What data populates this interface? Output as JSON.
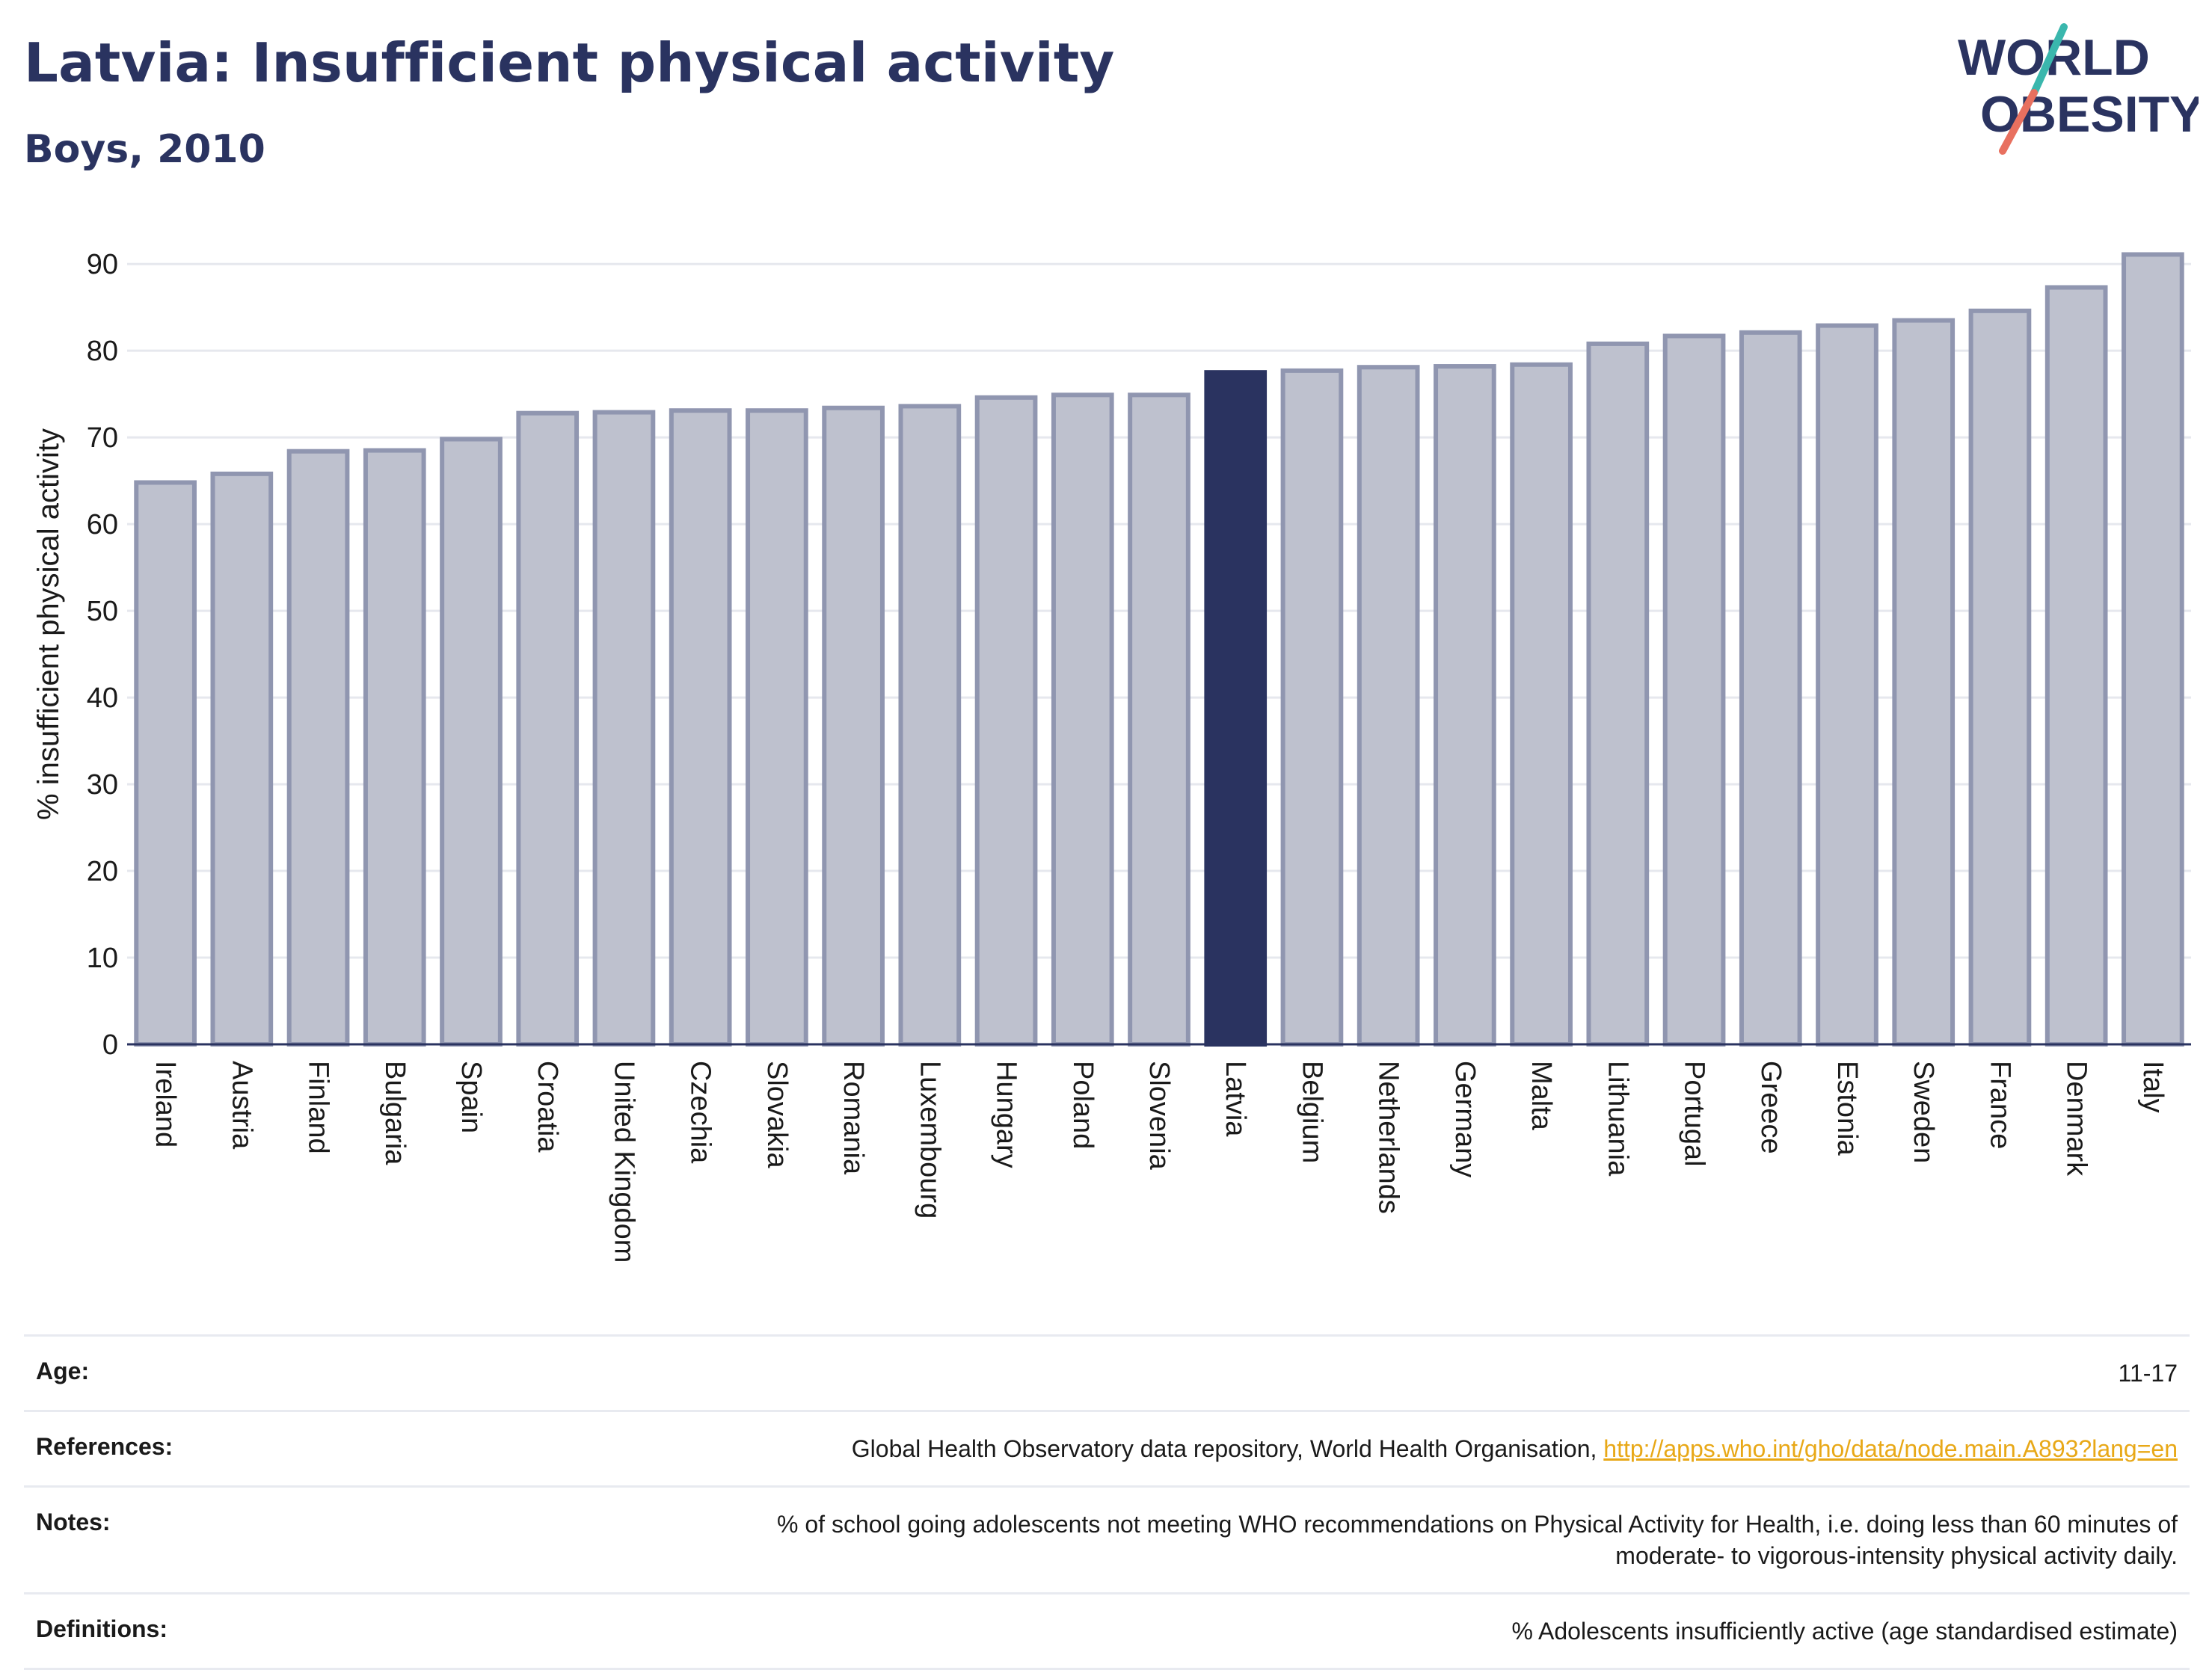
{
  "header": {
    "title": "Latvia: Insufficient physical activity",
    "subtitle": "Boys, 2010"
  },
  "logo": {
    "line1": "WORLD",
    "line2": "OBESITY"
  },
  "colors": {
    "title": "#2a3360",
    "highlight_bar": "#2a3360",
    "bar_fill": "#bec1ce",
    "bar_border": "#9096b0",
    "link": "#e8a817",
    "logo_teal": "#3ab7ad",
    "logo_coral": "#e8705f"
  },
  "chart_data": {
    "type": "bar",
    "title": "Latvia: Insufficient physical activity",
    "subtitle": "Boys, 2010",
    "xlabel": "",
    "ylabel": "% insufficient physical activity",
    "ylim": [
      0,
      92
    ],
    "yticks": [
      0,
      10,
      20,
      30,
      40,
      50,
      60,
      70,
      80,
      90
    ],
    "grid": true,
    "highlight": "Latvia",
    "categories": [
      "Ireland",
      "Austria",
      "Finland",
      "Bulgaria",
      "Spain",
      "Croatia",
      "United Kingdom",
      "Czechia",
      "Slovakia",
      "Romania",
      "Luxembourg",
      "Hungary",
      "Poland",
      "Slovenia",
      "Latvia",
      "Belgium",
      "Netherlands",
      "Germany",
      "Malta",
      "Lithuania",
      "Portugal",
      "Greece",
      "Estonia",
      "Sweden",
      "France",
      "Denmark",
      "Italy"
    ],
    "values": [
      64.8,
      65.8,
      68.4,
      68.5,
      69.8,
      72.8,
      72.9,
      73.1,
      73.1,
      73.4,
      73.6,
      74.6,
      74.9,
      74.9,
      77.5,
      77.7,
      78.1,
      78.2,
      78.4,
      80.8,
      81.7,
      82.1,
      82.9,
      83.5,
      84.6,
      87.3,
      91.1
    ]
  },
  "info": {
    "age_label": "Age:",
    "age_value": "11-17",
    "references_label": "References:",
    "references_text": "Global Health Observatory data repository, World Health Organisation, ",
    "references_link": "http://apps.who.int/gho/data/node.main.A893?lang=en",
    "notes_label": "Notes:",
    "notes_line1": "% of school going adolescents not meeting WHO recommendations on Physical Activity for Health, i.e. doing less than 60 minutes of",
    "notes_line2": "moderate- to vigorous-intensity physical activity daily.",
    "definitions_label": "Definitions:",
    "definitions_value": "% Adolescents insufficiently active (age standardised estimate)"
  }
}
